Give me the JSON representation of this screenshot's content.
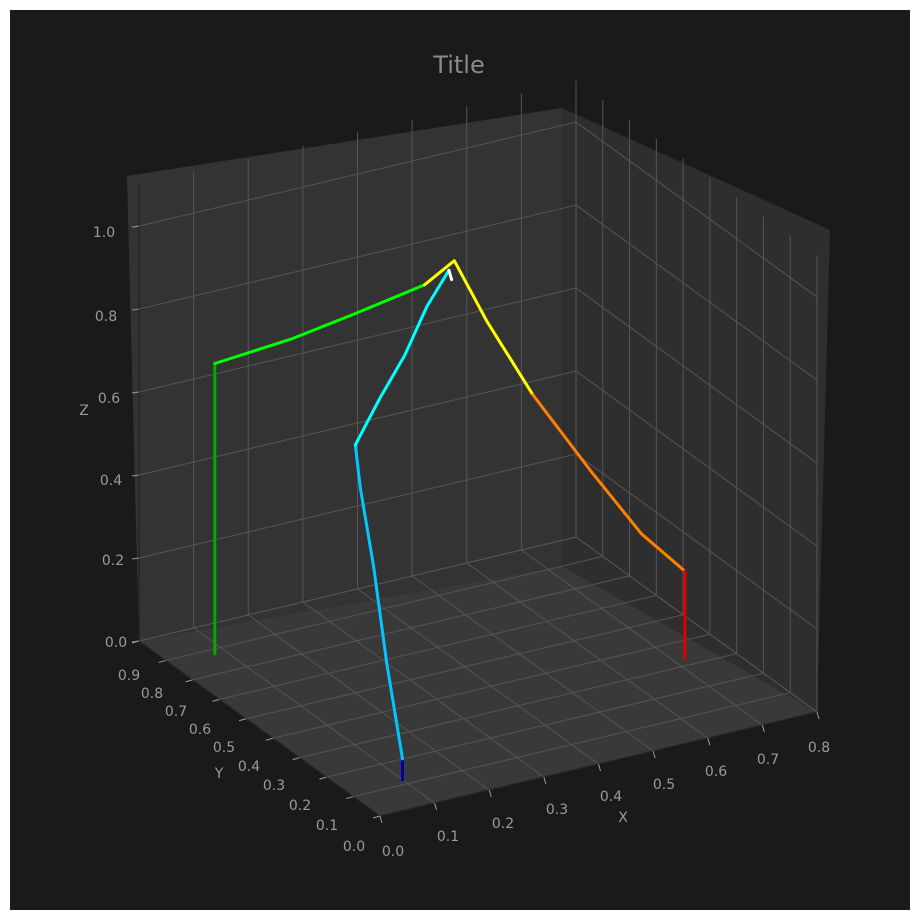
{
  "chart_data": {
    "type": "line",
    "projection": "3d",
    "title": "Title",
    "xlabel": "X",
    "ylabel": "Y",
    "zlabel": "Z",
    "x_ticks": [
      "0.0",
      "0.1",
      "0.2",
      "0.3",
      "0.4",
      "0.5",
      "0.6",
      "0.7",
      "0.8"
    ],
    "y_ticks": [
      "0.0",
      "0.1",
      "0.2",
      "0.3",
      "0.4",
      "0.5",
      "0.6",
      "0.7",
      "0.8",
      "0.9"
    ],
    "z_ticks": [
      "0.0",
      "0.2",
      "0.4",
      "0.6",
      "0.8",
      "1.0"
    ],
    "xlim": [
      0.0,
      0.8
    ],
    "ylim": [
      0.0,
      0.9
    ],
    "zlim": [
      0.0,
      1.0
    ],
    "grid": true,
    "colormap": "jet",
    "colors": {
      "figure_background": "#1a1a1a",
      "pane": "#333333",
      "grid": "#555555",
      "text": "#9a9a9a",
      "title": "#8a8a8a"
    },
    "series": [
      {
        "color": "#0000aa",
        "points": [
          [
            0.1,
            0.12,
            0.0
          ],
          [
            0.1,
            0.12,
            0.05
          ]
        ]
      },
      {
        "color": "#00c8ff",
        "points": [
          [
            0.1,
            0.12,
            0.05
          ],
          [
            0.12,
            0.22,
            0.23
          ],
          [
            0.15,
            0.33,
            0.4
          ],
          [
            0.17,
            0.42,
            0.54
          ],
          [
            0.19,
            0.48,
            0.61
          ]
        ]
      },
      {
        "color": "#00ffff",
        "points": [
          [
            0.19,
            0.48,
            0.61
          ],
          [
            0.25,
            0.51,
            0.69
          ],
          [
            0.31,
            0.54,
            0.76
          ],
          [
            0.37,
            0.58,
            0.84
          ],
          [
            0.43,
            0.62,
            0.89
          ]
        ]
      },
      {
        "color": "#ffffff",
        "points": [
          [
            0.43,
            0.62,
            0.89
          ],
          [
            0.44,
            0.63,
            0.86
          ]
        ]
      },
      {
        "color": "#00aa00",
        "points": [
          [
            0.08,
            0.78,
            0.0
          ],
          [
            0.08,
            0.78,
            0.7
          ]
        ]
      },
      {
        "color": "#00ff00",
        "points": [
          [
            0.08,
            0.78,
            0.7
          ],
          [
            0.2,
            0.74,
            0.74
          ],
          [
            0.3,
            0.7,
            0.79
          ],
          [
            0.4,
            0.65,
            0.85
          ]
        ]
      },
      {
        "color": "#ffff00",
        "points": [
          [
            0.4,
            0.65,
            0.85
          ],
          [
            0.44,
            0.62,
            0.91
          ],
          [
            0.48,
            0.58,
            0.77
          ],
          [
            0.53,
            0.51,
            0.61
          ]
        ]
      },
      {
        "color": "#ff8000",
        "points": [
          [
            0.53,
            0.51,
            0.61
          ],
          [
            0.6,
            0.44,
            0.44
          ],
          [
            0.66,
            0.37,
            0.3
          ],
          [
            0.72,
            0.33,
            0.21
          ]
        ]
      },
      {
        "color": "#dd0000",
        "points": [
          [
            0.72,
            0.33,
            0.21
          ],
          [
            0.72,
            0.33,
            0.0
          ]
        ]
      }
    ]
  }
}
